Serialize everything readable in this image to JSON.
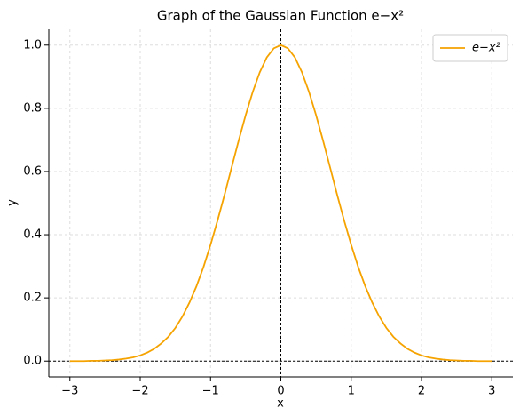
{
  "chart_data": {
    "type": "line",
    "title": "Graph of the Gaussian Function e−x²",
    "x_label": "x",
    "y_label": "y",
    "x": [
      -3.0,
      -2.9,
      -2.8,
      -2.7,
      -2.6,
      -2.5,
      -2.4,
      -2.3,
      -2.2,
      -2.1,
      -2.0,
      -1.9,
      -1.8,
      -1.7,
      -1.6,
      -1.5,
      -1.4,
      -1.3,
      -1.2,
      -1.1,
      -1.0,
      -0.9,
      -0.8,
      -0.7,
      -0.6,
      -0.5,
      -0.4,
      -0.3,
      -0.2,
      -0.1,
      0.0,
      0.1,
      0.2,
      0.3,
      0.4,
      0.5,
      0.6,
      0.7,
      0.8,
      0.9,
      1.0,
      1.1,
      1.2,
      1.3,
      1.4,
      1.5,
      1.6,
      1.7,
      1.8,
      1.9,
      2.0,
      2.1,
      2.2,
      2.3,
      2.4,
      2.5,
      2.6,
      2.7,
      2.8,
      2.9,
      3.0
    ],
    "series": [
      {
        "name": "e−x²",
        "color": "#f5a300",
        "values": [
          0.0,
          0.0,
          0.0,
          0.001,
          0.001,
          0.002,
          0.003,
          0.005,
          0.008,
          0.012,
          0.018,
          0.027,
          0.039,
          0.056,
          0.077,
          0.105,
          0.141,
          0.185,
          0.237,
          0.298,
          0.368,
          0.445,
          0.527,
          0.613,
          0.698,
          0.779,
          0.852,
          0.914,
          0.961,
          0.99,
          1.0,
          0.99,
          0.961,
          0.914,
          0.852,
          0.779,
          0.698,
          0.613,
          0.527,
          0.445,
          0.368,
          0.298,
          0.237,
          0.185,
          0.141,
          0.105,
          0.077,
          0.056,
          0.039,
          0.027,
          0.018,
          0.012,
          0.008,
          0.005,
          0.003,
          0.002,
          0.001,
          0.001,
          0.0,
          0.0,
          0.0
        ]
      }
    ],
    "xlim": [
      -3.3,
      3.3
    ],
    "ylim": [
      -0.05,
      1.05
    ],
    "xticks": [
      {
        "value": -3,
        "label": "−3"
      },
      {
        "value": -2,
        "label": "−2"
      },
      {
        "value": -1,
        "label": "−1"
      },
      0,
      1,
      2,
      3
    ],
    "yticks": [
      {
        "value": 0,
        "label": "0.0"
      },
      {
        "value": 0.2,
        "label": "0.2"
      },
      {
        "value": 0.4,
        "label": "0.4"
      },
      {
        "value": 0.6,
        "label": "0.6"
      },
      {
        "value": 0.8,
        "label": "0.8"
      },
      {
        "value": 1,
        "label": "1.0"
      }
    ],
    "hlines": [
      0
    ],
    "vlines": [
      0
    ],
    "grid": true,
    "legend": "upper right"
  }
}
